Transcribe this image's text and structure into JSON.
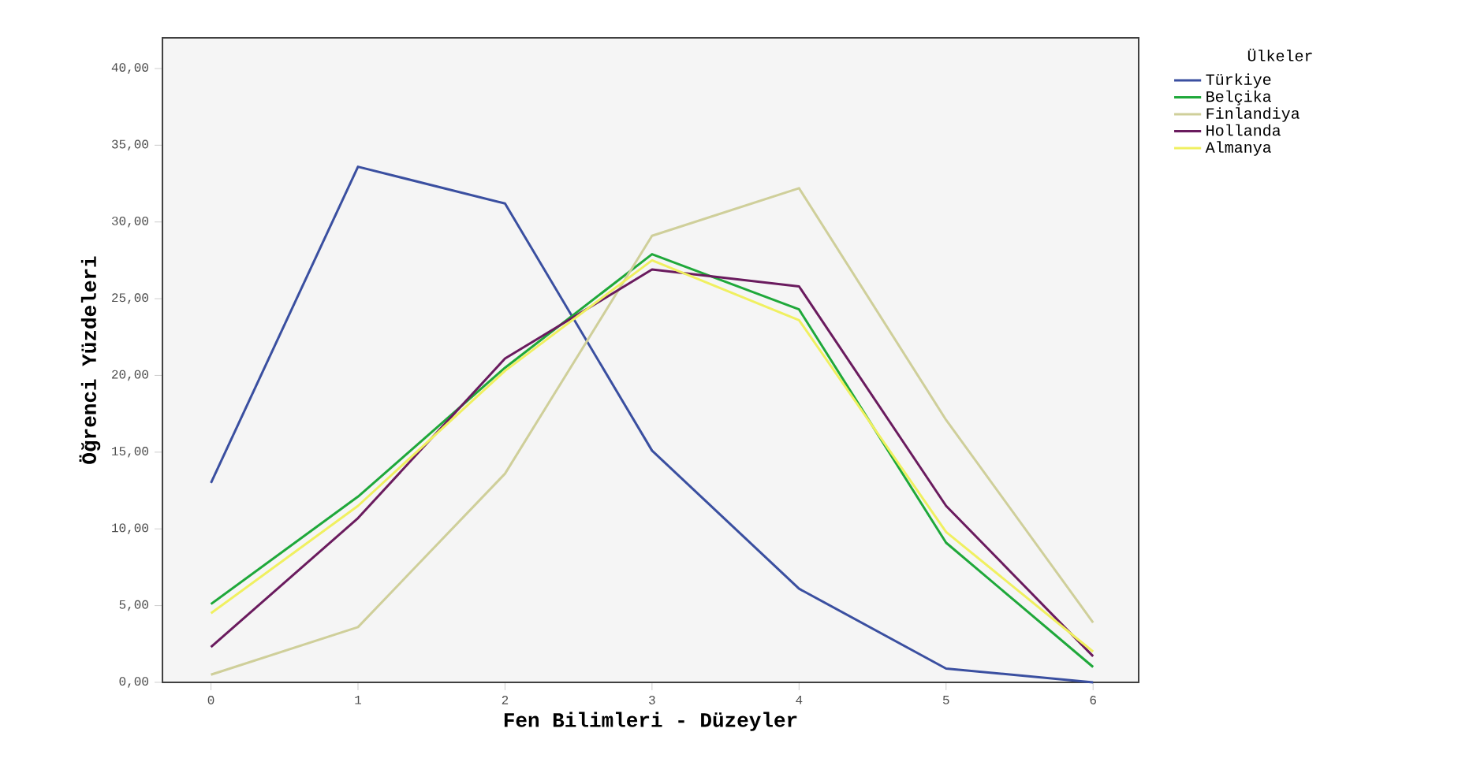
{
  "chart_data": {
    "type": "line",
    "xlabel": "Fen Bilimleri - Düzeyler",
    "ylabel": "Öğrenci Yüzdeleri",
    "legend_title": "Ülkeler",
    "x": [
      0,
      1,
      2,
      3,
      4,
      5,
      6
    ],
    "xlim": [
      -0.33,
      6.31
    ],
    "xticks": [
      0,
      1,
      2,
      3,
      4,
      5,
      6
    ],
    "ylim": [
      0,
      42
    ],
    "yticks": [
      {
        "value": 0,
        "label": "0,00"
      },
      {
        "value": 5,
        "label": "5,00"
      },
      {
        "value": 10,
        "label": "10,00"
      },
      {
        "value": 15,
        "label": "15,00"
      },
      {
        "value": 20,
        "label": "20,00"
      },
      {
        "value": 25,
        "label": "25,00"
      },
      {
        "value": 30,
        "label": "30,00"
      },
      {
        "value": 35,
        "label": "35,00"
      },
      {
        "value": 40,
        "label": "40,00"
      }
    ],
    "legend": "right",
    "grid": false,
    "marker": "none",
    "line_style": "solid",
    "series": [
      {
        "name": "Türkiye",
        "color": "#3a4fa0",
        "values": [
          13.0,
          33.6,
          31.2,
          15.1,
          6.1,
          0.9,
          0.0
        ]
      },
      {
        "name": "Belçika",
        "color": "#1fa83a",
        "values": [
          5.1,
          12.1,
          20.5,
          27.9,
          24.3,
          9.1,
          1.0
        ]
      },
      {
        "name": "Finlandiya",
        "color": "#cfcf9a",
        "values": [
          0.5,
          3.6,
          13.6,
          29.1,
          32.2,
          17.1,
          3.9
        ]
      },
      {
        "name": "Hollanda",
        "color": "#6a1b5e",
        "values": [
          2.3,
          10.7,
          21.1,
          26.9,
          25.8,
          11.5,
          1.7
        ]
      },
      {
        "name": "Almanya",
        "color": "#f0f060",
        "values": [
          4.5,
          11.5,
          20.3,
          27.5,
          23.6,
          9.8,
          2.0
        ]
      }
    ]
  }
}
